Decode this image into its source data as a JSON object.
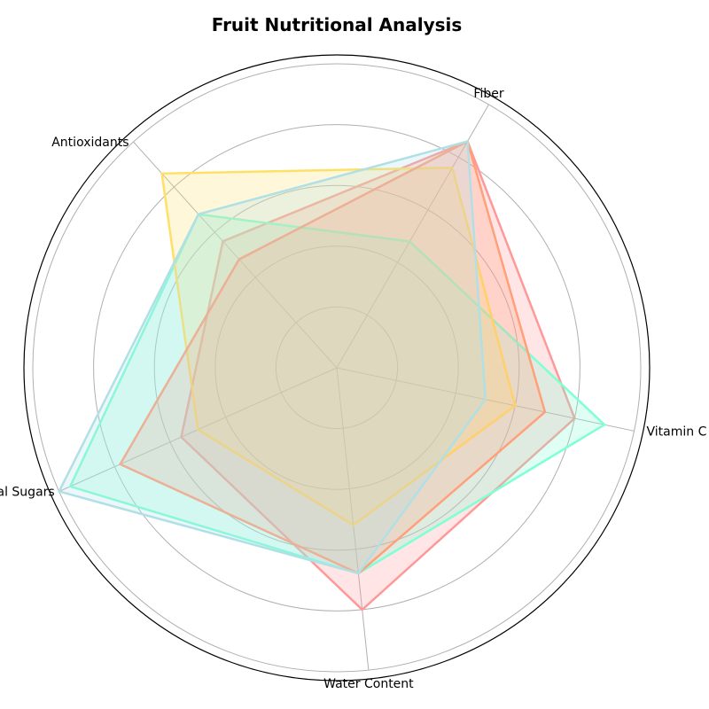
{
  "chart_data": {
    "type": "radar",
    "title": "Fruit Nutritional Analysis",
    "axes": [
      "Vitamin C",
      "Fiber",
      "Antioxidants",
      "Natural Sugars",
      "Water Content"
    ],
    "rlim": [
      0,
      5
    ],
    "rings": [
      1,
      2,
      3,
      4,
      5
    ],
    "grid": true,
    "legend": "none",
    "series": [
      {
        "color": "#FF9999",
        "values": [
          4.0,
          4.3,
          2.8,
          2.8,
          4.0
        ]
      },
      {
        "color": "#7FFFD4",
        "values": [
          4.5,
          2.4,
          3.4,
          4.8,
          3.4
        ]
      },
      {
        "color": "#FFE066",
        "values": [
          3.0,
          3.8,
          4.3,
          2.5,
          2.6
        ]
      },
      {
        "color": "#FFA07A",
        "values": [
          3.5,
          4.3,
          2.4,
          3.9,
          3.4
        ]
      },
      {
        "color": "#B0E0E6",
        "values": [
          2.5,
          4.3,
          3.4,
          5.0,
          3.4
        ]
      }
    ]
  }
}
